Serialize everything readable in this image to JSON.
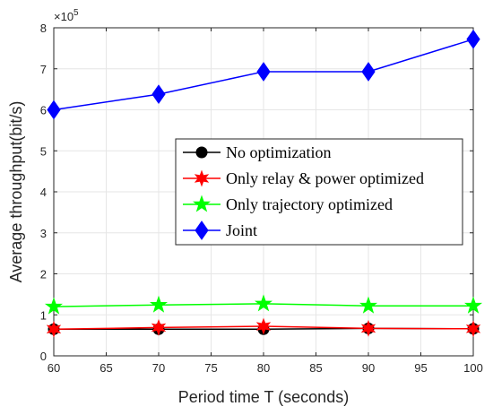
{
  "chart_data": {
    "type": "line",
    "title": "",
    "xlabel": "Period time T (seconds)",
    "ylabel": "Average throughput(bit/s)",
    "x": [
      60,
      70,
      80,
      90,
      100
    ],
    "xlim": [
      60,
      100
    ],
    "ylim": [
      0,
      8
    ],
    "y_exponent_label": "×10",
    "y_exponent_power": "5",
    "y_exponent_value": 100000,
    "x_ticks": [
      "60",
      "65",
      "70",
      "75",
      "80",
      "85",
      "90",
      "95",
      "100"
    ],
    "y_ticks": [
      "0",
      "1",
      "2",
      "3",
      "4",
      "5",
      "6",
      "7",
      "8"
    ],
    "grid": true,
    "legend_position": "center-right",
    "series": [
      {
        "name": "No optimization",
        "color": "#000000",
        "marker": "circle",
        "values": [
          0.65,
          0.65,
          0.65,
          0.67,
          0.66
        ]
      },
      {
        "name": "Only relay & power optimized",
        "color": "#ff0000",
        "marker": "hexagram",
        "values": [
          0.65,
          0.69,
          0.72,
          0.67,
          0.66
        ]
      },
      {
        "name": "Only  trajectory optimized",
        "color": "#00ff00",
        "marker": "pentagram",
        "values": [
          1.2,
          1.24,
          1.27,
          1.22,
          1.22
        ]
      },
      {
        "name": "Joint",
        "color": "#0000ff",
        "marker": "diamond",
        "values": [
          6.0,
          6.38,
          6.93,
          6.93,
          7.72
        ]
      }
    ]
  }
}
